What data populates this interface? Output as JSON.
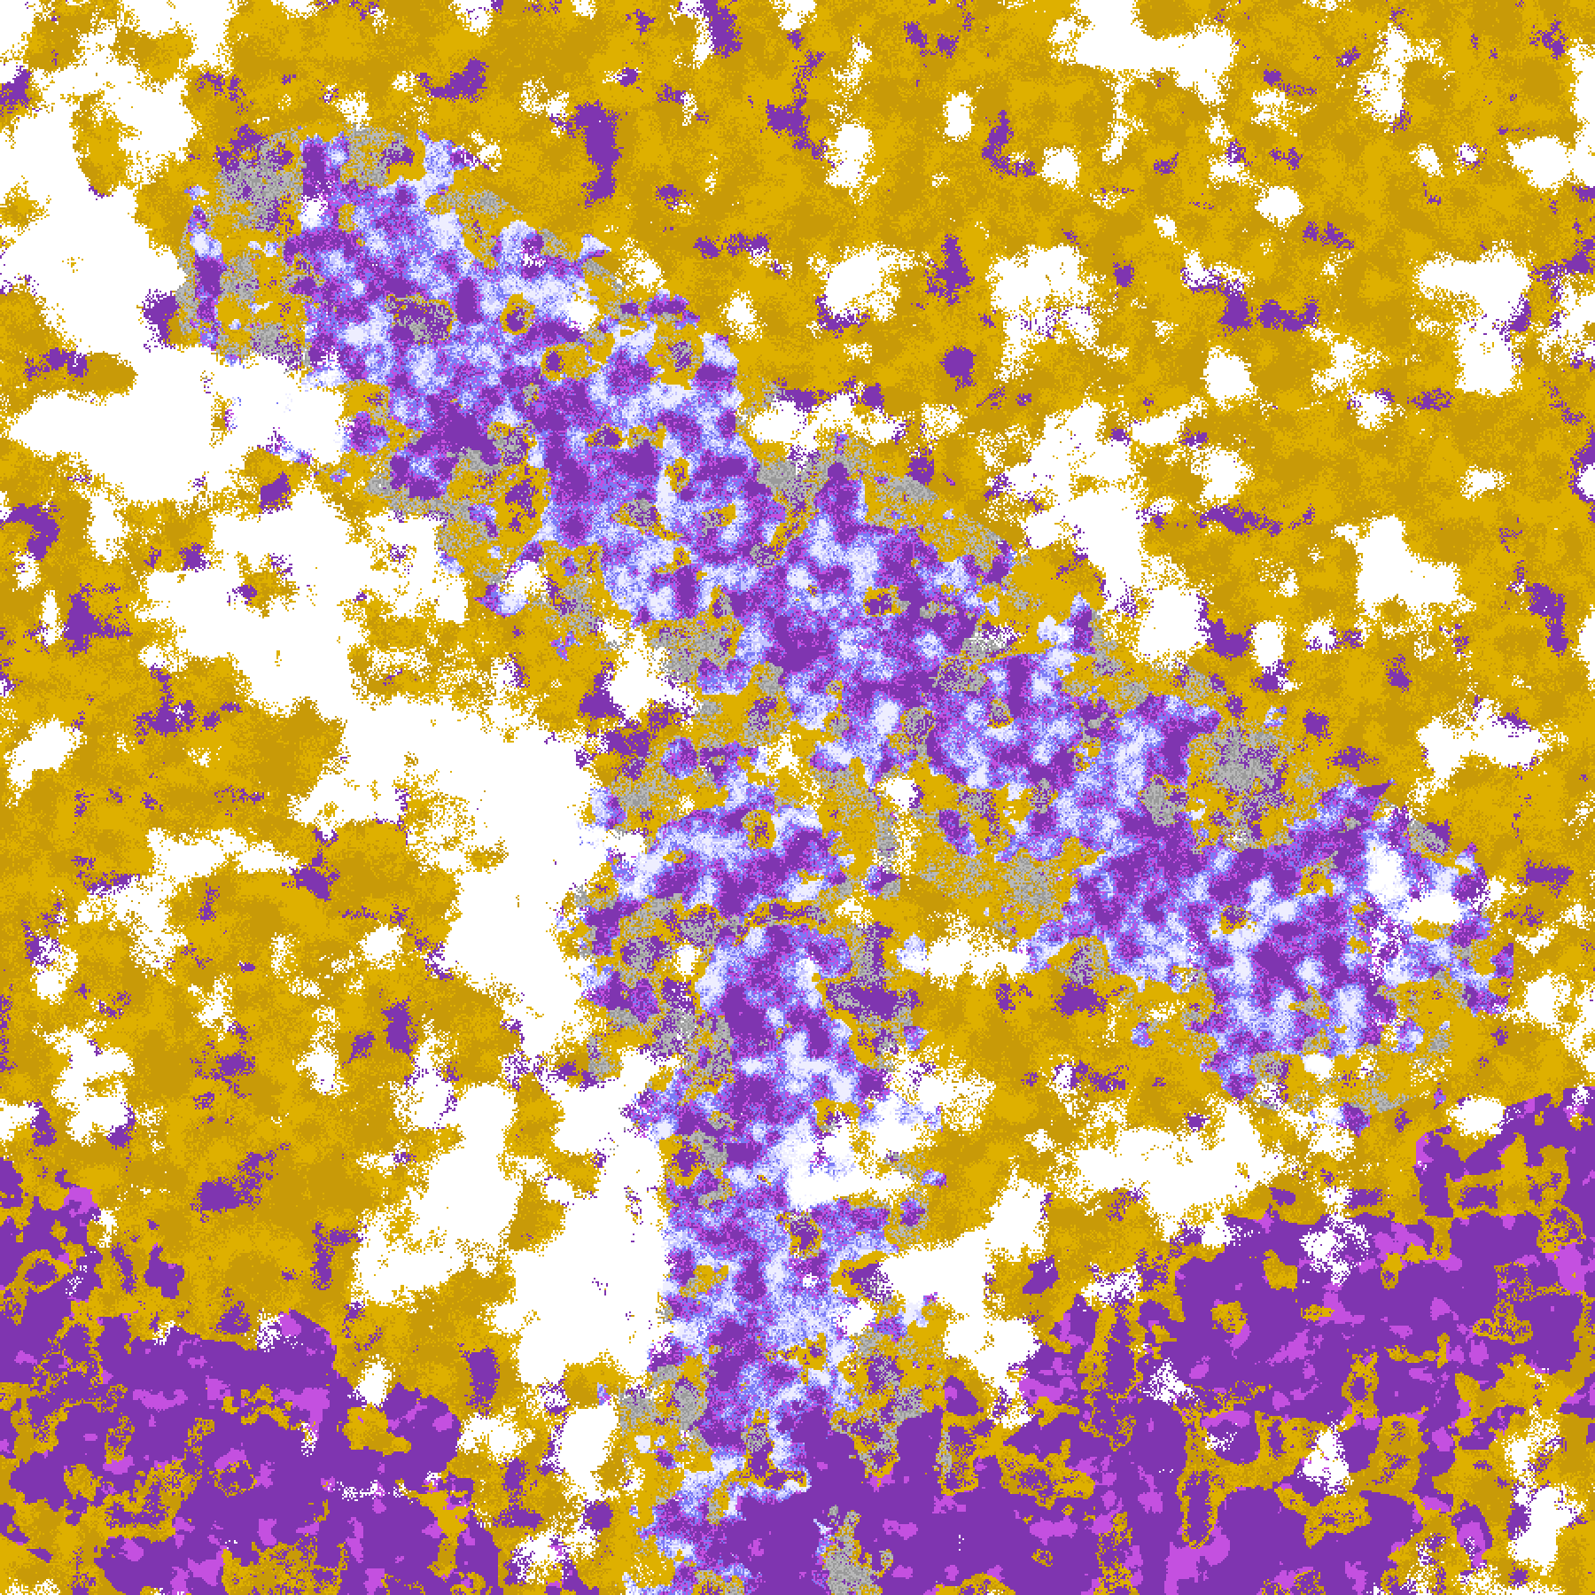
{
  "map": {
    "type": "classified-raster",
    "palette": {
      "background": "#ffffff",
      "gold": "#deb000",
      "dark_gold": "#c89a08",
      "gray": "#9a9a9a",
      "light_gray": "#b8b8b8",
      "purple": "#7f35b0",
      "magenta": "#c450e0",
      "periwinkle": "#7a7af5",
      "lavender": "#c4c4ff",
      "pale_lavender": "#eeeeff"
    }
  }
}
